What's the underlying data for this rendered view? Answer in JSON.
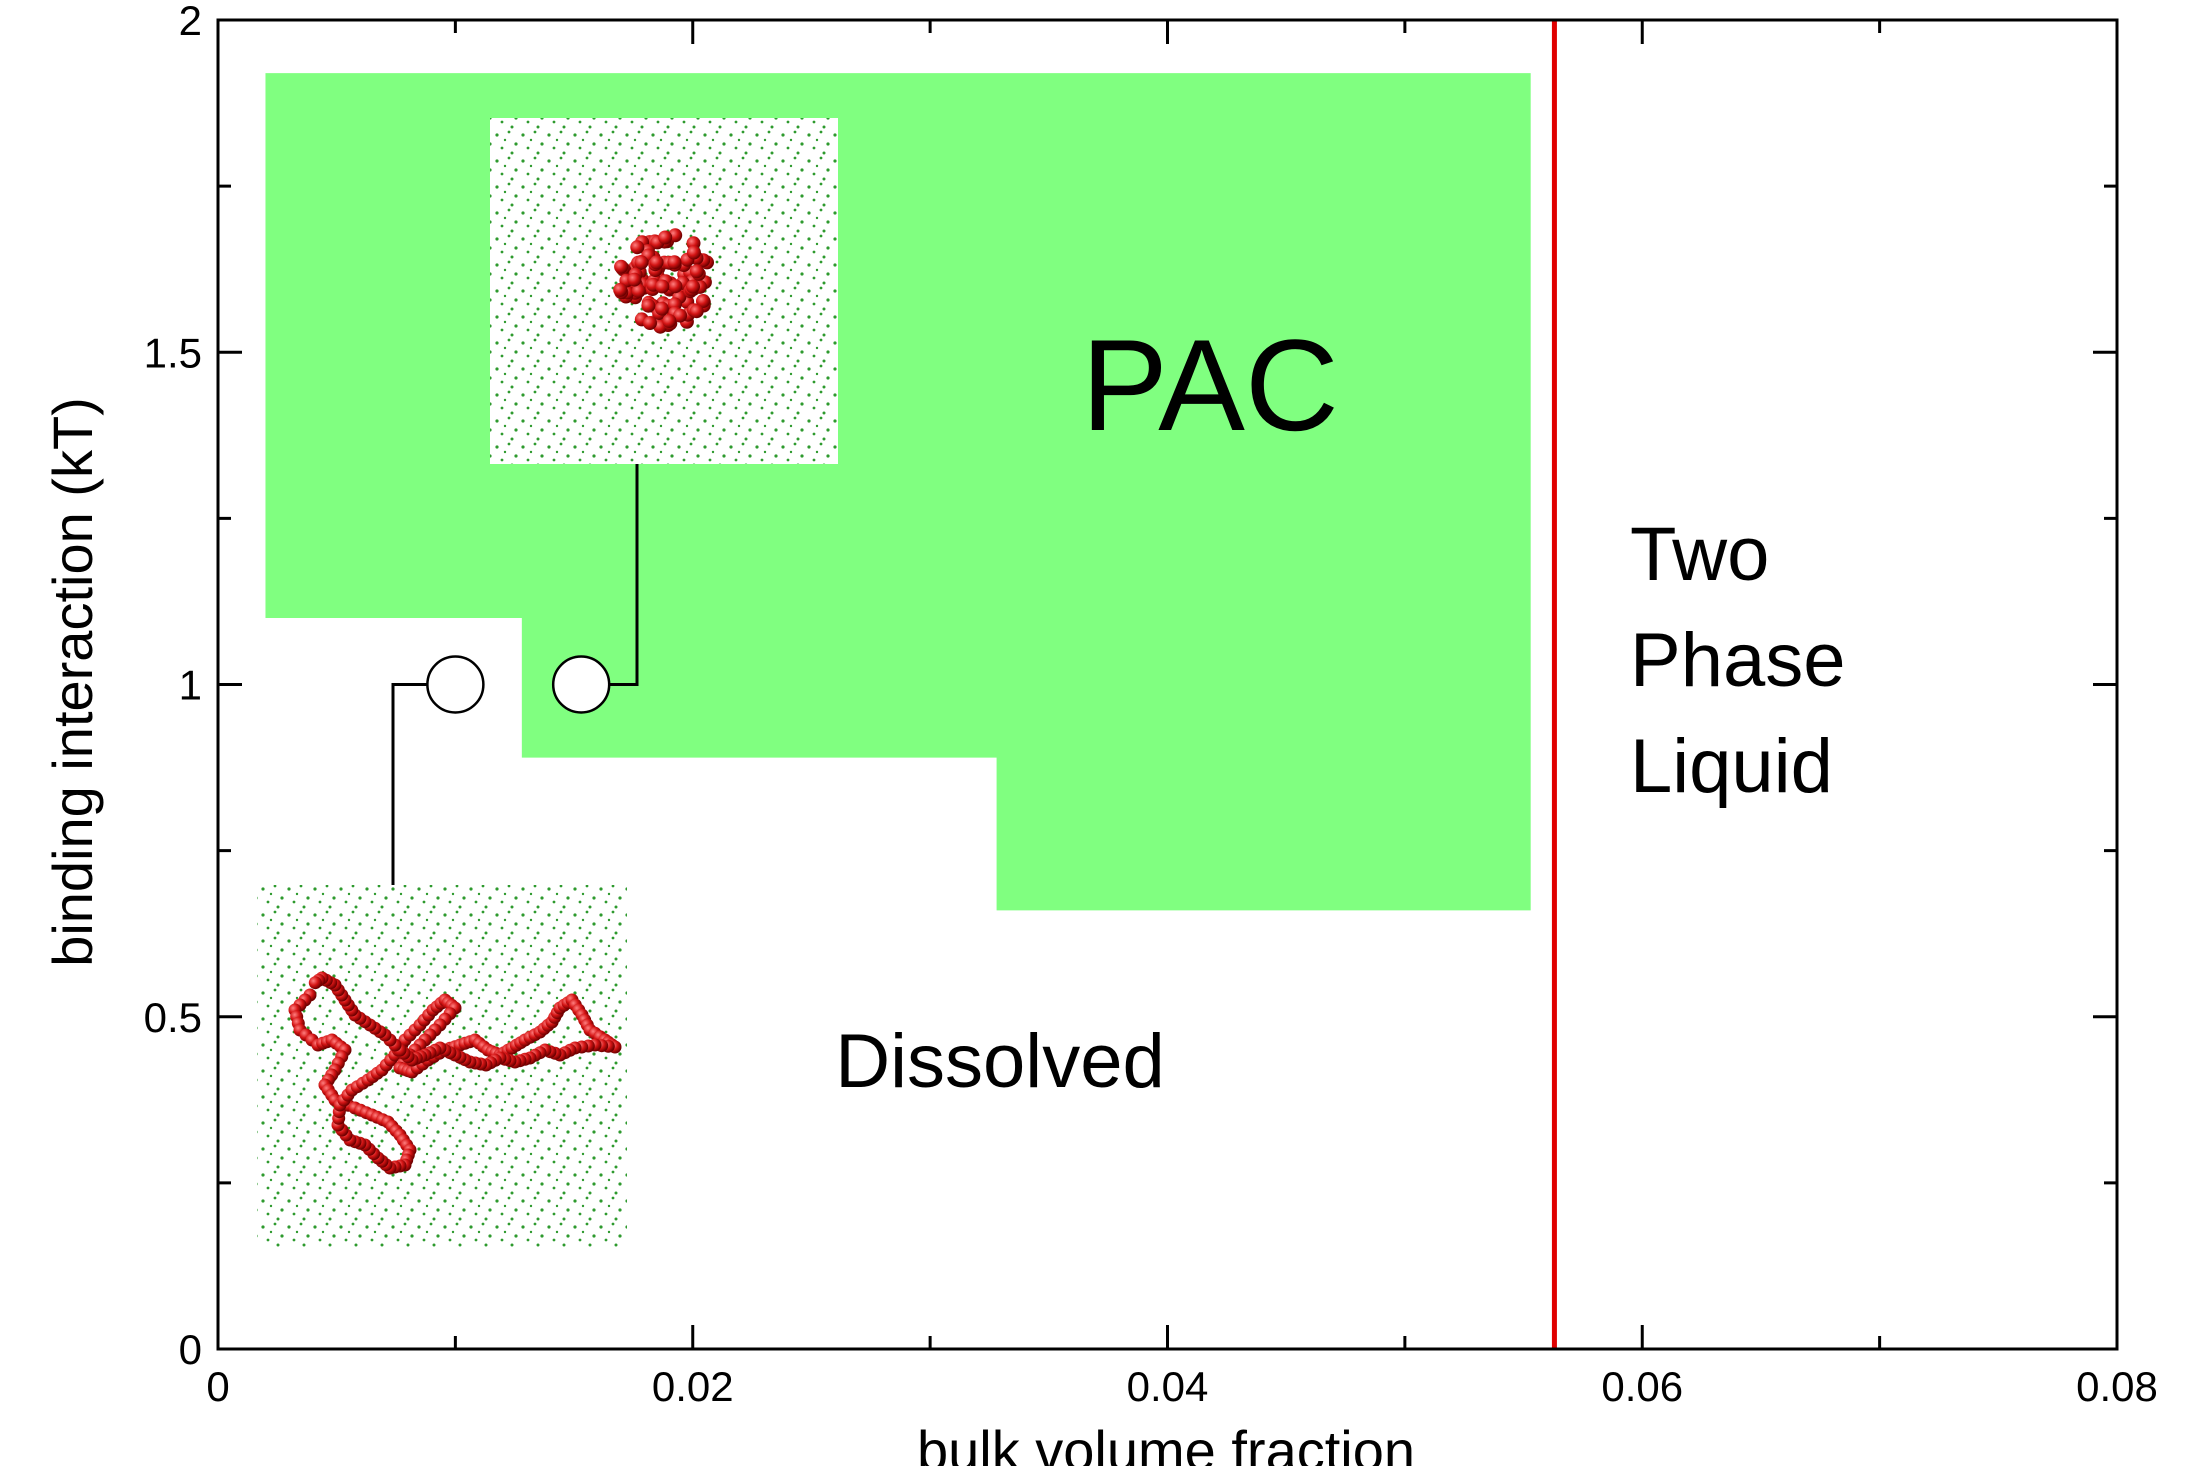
{
  "chart_data": {
    "type": "phase-diagram",
    "xlabel": "bulk volume fraction",
    "ylabel": "binding interaction (kT)",
    "xlim": [
      0,
      0.08
    ],
    "ylim": [
      0,
      2
    ],
    "xticks": [
      {
        "value": 0,
        "label": "0"
      },
      {
        "value": 0.02,
        "label": "0.02"
      },
      {
        "value": 0.04,
        "label": "0.04"
      },
      {
        "value": 0.06,
        "label": "0.06"
      },
      {
        "value": 0.08,
        "label": "0.08"
      }
    ],
    "yticks": [
      {
        "value": 0,
        "label": "0"
      },
      {
        "value": 0.5,
        "label": "0.5"
      },
      {
        "value": 1,
        "label": "1"
      },
      {
        "value": 1.5,
        "label": "1.5"
      },
      {
        "value": 2,
        "label": "2"
      }
    ],
    "pac_region": {
      "color": "#80ff80",
      "boundary": [
        [
          0.002,
          1.92
        ],
        [
          0.0553,
          1.92
        ],
        [
          0.0553,
          0.66
        ],
        [
          0.0328,
          0.66
        ],
        [
          0.0328,
          0.89
        ],
        [
          0.0128,
          0.89
        ],
        [
          0.0128,
          1.1
        ],
        [
          0.002,
          1.1
        ]
      ]
    },
    "phase_line": {
      "x": 0.0563,
      "color": "#e00000"
    },
    "points": [
      {
        "name": "dissolved-sample",
        "x": 0.01,
        "y": 1.0
      },
      {
        "name": "pac-sample",
        "x": 0.0153,
        "y": 1.0
      }
    ],
    "labels": {
      "pac": "PAC",
      "dissolved": "Dissolved",
      "two_phase": [
        "Two",
        "Phase",
        "Liquid"
      ]
    },
    "colors": {
      "polymer": "#cc1111",
      "solvent": "#2e9a2e"
    }
  }
}
